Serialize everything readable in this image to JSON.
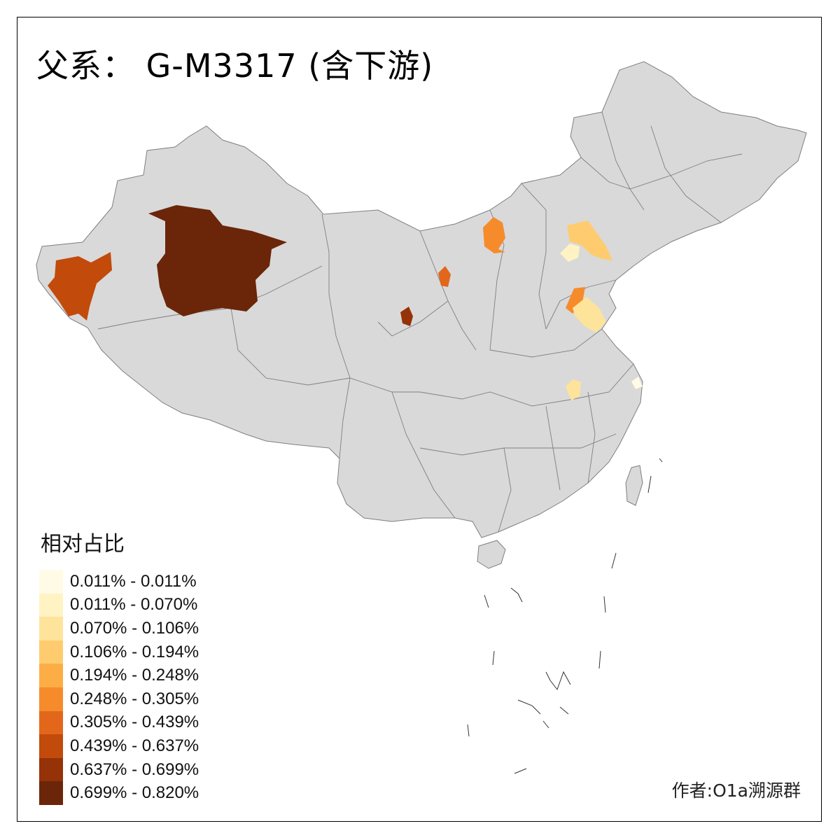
{
  "title": "父系： G-M3317 (含下游)",
  "legend": {
    "title": "相对占比",
    "items": [
      {
        "label": "0.011% - 0.011%",
        "color": "#FFFBE6"
      },
      {
        "label": "0.011% - 0.070%",
        "color": "#FFF3C4"
      },
      {
        "label": "0.070% - 0.106%",
        "color": "#FEE39B"
      },
      {
        "label": "0.106% - 0.194%",
        "color": "#FECC6E"
      },
      {
        "label": "0.194% - 0.248%",
        "color": "#FDAD45"
      },
      {
        "label": "0.248% - 0.305%",
        "color": "#F68B2C"
      },
      {
        "label": "0.305% - 0.439%",
        "color": "#E2671A"
      },
      {
        "label": "0.439% - 0.637%",
        "color": "#C24A0B"
      },
      {
        "label": "0.637% - 0.699%",
        "color": "#963208"
      },
      {
        "label": "0.699% - 0.820%",
        "color": "#6B2509"
      }
    ]
  },
  "credit": "作者:O1a溯源群",
  "colors": {
    "land": "#D9D9D9",
    "border": "#7F7F7F",
    "frame": "#000000"
  },
  "regions": [
    {
      "name": "Aksu / Kashgar region",
      "class": "0.699% - 0.820%"
    },
    {
      "name": "Kizilsu / Kashgar west",
      "class": "0.439% - 0.637%"
    },
    {
      "name": "Baotou / Wuhai area",
      "class": "0.248% - 0.305%"
    },
    {
      "name": "Yinchuan area",
      "class": "0.305% - 0.439%"
    },
    {
      "name": "Lanzhou area",
      "class": "0.637% - 0.699%"
    },
    {
      "name": "Chengde area",
      "class": "0.106% - 0.194%"
    },
    {
      "name": "Zhangjiakou / Beijing area",
      "class": "0.011% - 0.070%"
    },
    {
      "name": "Liaocheng area",
      "class": "0.248% - 0.305%"
    },
    {
      "name": "Jinan / Tai'an area",
      "class": "0.070% - 0.106%"
    },
    {
      "name": "Anqing / Hefei area",
      "class": "0.070% - 0.106%"
    },
    {
      "name": "Shanghai area",
      "class": "0.011% - 0.011%"
    }
  ]
}
